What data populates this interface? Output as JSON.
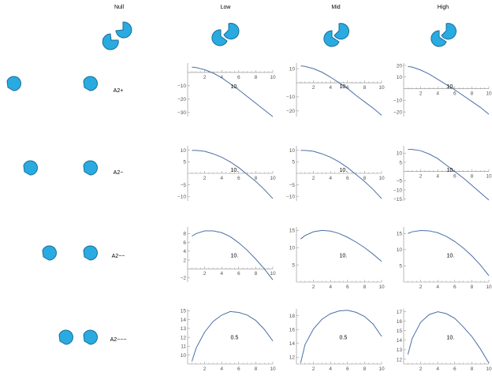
{
  "colors": {
    "curve": "#4a6fa5",
    "shape_fill": "#29abe2",
    "shape_stroke": "#1a6d95",
    "axis": "#888888"
  },
  "headers": {
    "null": "Null",
    "low": "Low",
    "mid": "Mid",
    "high": "High"
  },
  "row_labels": [
    "A2+",
    "A2−",
    "A2−−",
    "A2−−−"
  ],
  "chart_data": [
    {
      "type": "line",
      "row": 0,
      "col": "Low",
      "annotation": "10.",
      "xticks": [
        2,
        4,
        6,
        8,
        10
      ],
      "yticks": [
        -30,
        -20,
        -10
      ],
      "xlim": [
        0,
        10
      ],
      "ylim": [
        -33,
        7
      ],
      "x": [
        0.5,
        1,
        2,
        3,
        4,
        5,
        6,
        7,
        8,
        9,
        10
      ],
      "y": [
        4,
        3.6,
        2,
        -0.5,
        -4,
        -8.5,
        -13,
        -18,
        -23,
        -28,
        -33
      ]
    },
    {
      "type": "line",
      "row": 0,
      "col": "Mid",
      "annotation": "10.",
      "xticks": [
        2,
        4,
        6,
        8,
        10
      ],
      "yticks": [
        -20,
        -10,
        10
      ],
      "xlim": [
        0,
        10
      ],
      "ylim": [
        -24,
        14
      ],
      "x": [
        0.5,
        1,
        2,
        3,
        4,
        5,
        6,
        7,
        8,
        9,
        10
      ],
      "y": [
        12,
        11.6,
        10,
        7.5,
        4,
        0,
        -4,
        -9,
        -13.5,
        -18,
        -23
      ]
    },
    {
      "type": "line",
      "row": 0,
      "col": "High",
      "annotation": "10.",
      "xticks": [
        2,
        4,
        6,
        8,
        10
      ],
      "yticks": [
        -20,
        -10,
        10,
        20
      ],
      "xlim": [
        0,
        10
      ],
      "ylim": [
        -24,
        22
      ],
      "x": [
        0.5,
        1,
        2,
        3,
        4,
        5,
        6,
        7,
        8,
        9,
        10
      ],
      "y": [
        19,
        18.5,
        16,
        12.5,
        8,
        3.5,
        -1,
        -6,
        -11,
        -16,
        -22
      ]
    },
    {
      "type": "line",
      "row": 1,
      "col": "Low",
      "annotation": "10.",
      "xticks": [
        2,
        4,
        6,
        8,
        10
      ],
      "yticks": [
        -10,
        -5,
        5,
        10
      ],
      "xlim": [
        0,
        10
      ],
      "ylim": [
        -12,
        12
      ],
      "x": [
        0.5,
        1,
        2,
        3,
        4,
        5,
        6,
        7,
        8,
        9,
        10
      ],
      "y": [
        10,
        10,
        9.6,
        8.5,
        7,
        5,
        2.5,
        -0.5,
        -3.5,
        -7,
        -11
      ]
    },
    {
      "type": "line",
      "row": 1,
      "col": "Mid",
      "annotation": "10.",
      "xticks": [
        2,
        4,
        6,
        8,
        10
      ],
      "yticks": [
        -10,
        -5,
        5,
        10
      ],
      "xlim": [
        0,
        10
      ],
      "ylim": [
        -12,
        12
      ],
      "x": [
        0.5,
        1,
        2,
        3,
        4,
        5,
        6,
        7,
        8,
        9,
        10
      ],
      "y": [
        10,
        10,
        9.6,
        8.5,
        7,
        5,
        2.5,
        -0.5,
        -3.5,
        -7,
        -11
      ]
    },
    {
      "type": "line",
      "row": 1,
      "col": "High",
      "annotation": "10.",
      "xticks": [
        2,
        4,
        6,
        8,
        10
      ],
      "yticks": [
        -15,
        -10,
        -5,
        5,
        10
      ],
      "xlim": [
        0,
        10
      ],
      "ylim": [
        -16,
        14
      ],
      "x": [
        0.5,
        1,
        2,
        3,
        4,
        5,
        6,
        7,
        8,
        9,
        10
      ],
      "y": [
        12,
        12,
        11.3,
        9.5,
        7,
        3.5,
        0,
        -3.5,
        -7.5,
        -11.5,
        -15.5
      ]
    },
    {
      "type": "line",
      "row": 2,
      "col": "Low",
      "annotation": "10.",
      "xticks": [
        2,
        4,
        6,
        8,
        10
      ],
      "yticks": [
        -2,
        2,
        4,
        6,
        8
      ],
      "xlim": [
        0,
        10
      ],
      "ylim": [
        -3,
        9.5
      ],
      "x": [
        0.5,
        1,
        2,
        3,
        4,
        5,
        6,
        7,
        8,
        9,
        10
      ],
      "y": [
        7.4,
        8,
        8.6,
        8.6,
        8.2,
        7.3,
        5.9,
        4.2,
        2.2,
        0,
        -2.5
      ]
    },
    {
      "type": "line",
      "row": 2,
      "col": "Mid",
      "annotation": "10.",
      "xticks": [
        2,
        4,
        6,
        8,
        10
      ],
      "yticks": [
        5,
        10,
        15
      ],
      "xlim": [
        0,
        10
      ],
      "ylim": [
        0,
        16
      ],
      "x": [
        0.5,
        1,
        2,
        3,
        4,
        5,
        6,
        7,
        8,
        9,
        10
      ],
      "y": [
        12.5,
        13.5,
        14.6,
        15,
        14.8,
        14.1,
        13,
        11.6,
        10,
        8.1,
        6
      ]
    },
    {
      "type": "line",
      "row": 2,
      "col": "High",
      "annotation": "10.",
      "xticks": [
        2,
        4,
        6,
        8,
        10
      ],
      "yticks": [
        5,
        10,
        15
      ],
      "xlim": [
        0,
        10
      ],
      "ylim": [
        0,
        17
      ],
      "x": [
        0.5,
        1,
        2,
        3,
        4,
        5,
        6,
        7,
        8,
        9,
        10
      ],
      "y": [
        15,
        15.5,
        15.9,
        15.8,
        15.2,
        14.1,
        12.5,
        10.5,
        8.1,
        5.3,
        2
      ]
    },
    {
      "type": "line",
      "row": 3,
      "col": "Low",
      "annotation": "0.5",
      "xticks": [
        2,
        4,
        6,
        8,
        10
      ],
      "yticks": [
        10,
        11,
        12,
        13,
        14,
        15
      ],
      "xlim": [
        0,
        10
      ],
      "ylim": [
        9,
        15.2
      ],
      "x": [
        0.5,
        1,
        2,
        3,
        4,
        5,
        6,
        7,
        8,
        9,
        10
      ],
      "y": [
        9.3,
        10.8,
        12.6,
        13.8,
        14.5,
        14.9,
        14.8,
        14.5,
        13.9,
        12.9,
        11.6
      ]
    },
    {
      "type": "line",
      "row": 3,
      "col": "Mid",
      "annotation": "0.5",
      "xticks": [
        2,
        4,
        6,
        8,
        10
      ],
      "yticks": [
        12,
        14,
        16,
        18
      ],
      "xlim": [
        0,
        10
      ],
      "ylim": [
        11,
        19
      ],
      "x": [
        0.5,
        1,
        2,
        3,
        4,
        5,
        6,
        7,
        8,
        9,
        10
      ],
      "y": [
        11.2,
        13.8,
        16.1,
        17.5,
        18.3,
        18.7,
        18.8,
        18.5,
        17.9,
        16.8,
        15
      ]
    },
    {
      "type": "line",
      "row": 3,
      "col": "High",
      "annotation": "10.",
      "xticks": [
        2,
        4,
        6,
        8,
        10
      ],
      "yticks": [
        12,
        13,
        14,
        15,
        16,
        17
      ],
      "xlim": [
        0,
        10
      ],
      "ylim": [
        11.5,
        17.3
      ],
      "x": [
        0.5,
        1,
        2,
        3,
        4,
        5,
        6,
        7,
        8,
        9,
        10
      ],
      "y": [
        12.5,
        14.2,
        15.9,
        16.7,
        17,
        16.8,
        16.3,
        15.4,
        14.4,
        13.1,
        11.6
      ]
    }
  ]
}
